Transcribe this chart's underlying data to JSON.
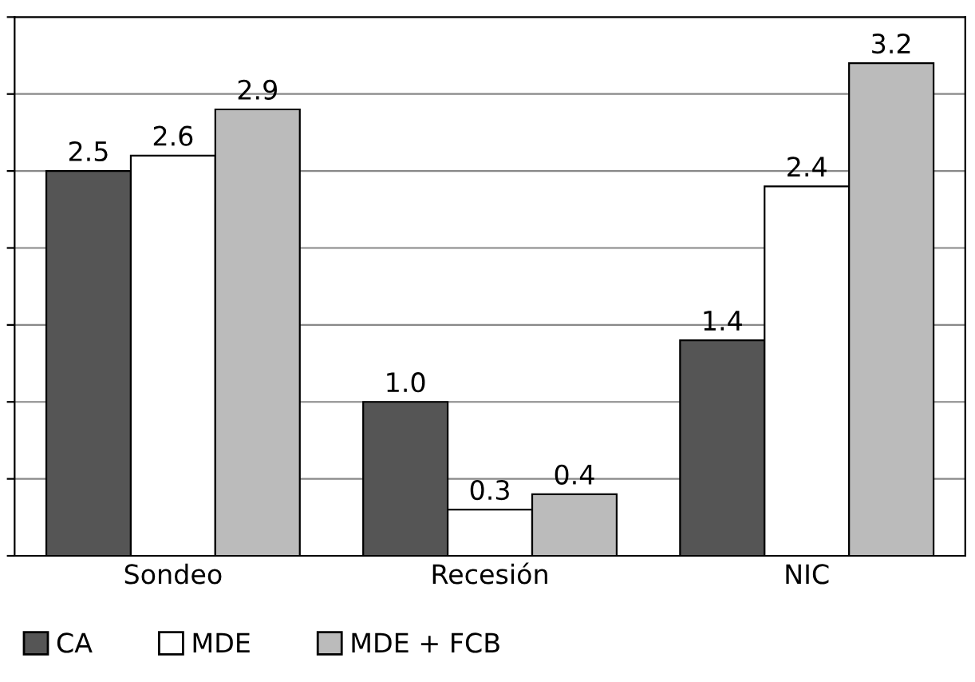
{
  "chart_data": {
    "type": "bar",
    "categories": [
      "Sondeo",
      "Recesión",
      "NIC"
    ],
    "series": [
      {
        "name": "CA",
        "color": "#555555",
        "values": [
          2.5,
          1.0,
          1.4
        ],
        "value_labels": [
          "2.5",
          "1.0",
          "1.4"
        ]
      },
      {
        "name": "MDE",
        "color": "#ffffff",
        "values": [
          2.6,
          0.3,
          2.4
        ],
        "value_labels": [
          "2.6",
          "0.3",
          "2.4"
        ]
      },
      {
        "name": "MDE + FCB",
        "color": "#bbbbbb",
        "values": [
          2.9,
          0.4,
          3.2
        ],
        "value_labels": [
          "2.9",
          "0.4",
          "3.2"
        ]
      }
    ],
    "ylim": [
      0,
      3.5
    ],
    "yticks": [
      {
        "value": 0,
        "label": null
      },
      {
        "value": 0.5,
        "label": null
      },
      {
        "value": 1,
        "label": null
      },
      {
        "value": 1.5,
        "label": null
      },
      {
        "value": 2,
        "label": null
      },
      {
        "value": 2.5,
        "label": null
      },
      {
        "value": 3,
        "label": null
      },
      {
        "value": 3.5,
        "label": null
      }
    ],
    "grid": "y",
    "legend": "bottom left",
    "tick_labels": "x"
  }
}
